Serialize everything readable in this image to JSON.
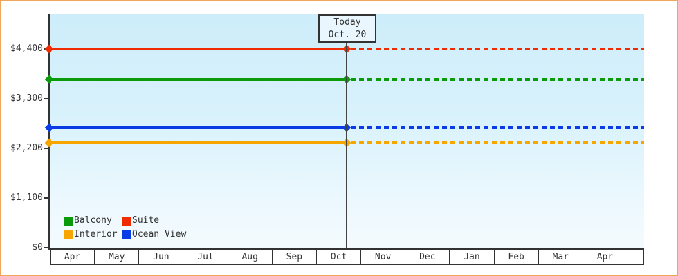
{
  "chart_data": {
    "type": "line",
    "description": "Cabin price history/forecast chart: flat price lines per cabin category, solid up to today then dashed (projected) after today.",
    "x_categories": [
      "Apr",
      "May",
      "Jun",
      "Jul",
      "Aug",
      "Sep",
      "Oct",
      "Nov",
      "Dec",
      "Jan",
      "Feb",
      "Mar",
      "Apr"
    ],
    "y_ticks": [
      {
        "value": 0,
        "label": "$0"
      },
      {
        "value": 1100,
        "label": "$1,100"
      },
      {
        "value": 2200,
        "label": "$2,200"
      },
      {
        "value": 3300,
        "label": "$3,300"
      },
      {
        "value": 4400,
        "label": "$4,400"
      }
    ],
    "ylim": [
      0,
      5160
    ],
    "series": [
      {
        "name": "Suite",
        "value": 4400,
        "color": "#f02b00",
        "style": "solid-then-dashed"
      },
      {
        "name": "Balcony",
        "value": 3720,
        "color": "#0a9a0a",
        "style": "solid-then-dashed"
      },
      {
        "name": "Ocean View",
        "value": 2660,
        "color": "#0a3ce6",
        "style": "solid-then-dashed"
      },
      {
        "name": "Interior",
        "value": 2320,
        "color": "#f7a600",
        "style": "solid-then-dashed"
      }
    ],
    "today": {
      "line1": "Today",
      "line2": "Oct. 20",
      "month": "Oct",
      "day": 20
    },
    "legend_order": [
      "Balcony",
      "Suite",
      "Interior",
      "Ocean View"
    ],
    "legend_position": "bottom-left-inside-plot",
    "grid": false,
    "markers": "diamond at axis start and at today line on every series"
  },
  "colors": {
    "frame_border": "#eda65a",
    "axis": "#333333",
    "text": "#333333",
    "plot_bg_top": "#cdedfa",
    "plot_bg_bottom": "#f4fbfe",
    "today_box_bg": "#e9f6fd"
  }
}
